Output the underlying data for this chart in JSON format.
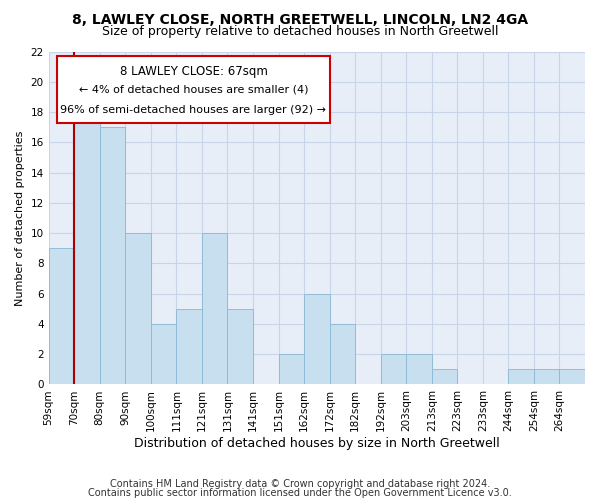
{
  "title": "8, LAWLEY CLOSE, NORTH GREETWELL, LINCOLN, LN2 4GA",
  "subtitle": "Size of property relative to detached houses in North Greetwell",
  "xlabel": "Distribution of detached houses by size in North Greetwell",
  "ylabel": "Number of detached properties",
  "bin_labels": [
    "59sqm",
    "70sqm",
    "80sqm",
    "90sqm",
    "100sqm",
    "111sqm",
    "121sqm",
    "131sqm",
    "141sqm",
    "151sqm",
    "162sqm",
    "172sqm",
    "182sqm",
    "192sqm",
    "203sqm",
    "213sqm",
    "223sqm",
    "233sqm",
    "244sqm",
    "254sqm",
    "264sqm"
  ],
  "bar_values": [
    9,
    18,
    17,
    10,
    4,
    5,
    10,
    5,
    0,
    2,
    6,
    4,
    0,
    2,
    2,
    1,
    0,
    0,
    1,
    1,
    1
  ],
  "bar_color": "#c8dff0",
  "bar_edge_color": "#89b8d4",
  "highlight_line_color": "#aa0000",
  "annotation_title": "8 LAWLEY CLOSE: 67sqm",
  "annotation_line1": "← 4% of detached houses are smaller (4)",
  "annotation_line2": "96% of semi-detached houses are larger (92) →",
  "annotation_box_color": "#ffffff",
  "annotation_box_edge": "#cc0000",
  "ylim": [
    0,
    22
  ],
  "yticks": [
    0,
    2,
    4,
    6,
    8,
    10,
    12,
    14,
    16,
    18,
    20,
    22
  ],
  "footer_line1": "Contains HM Land Registry data © Crown copyright and database right 2024.",
  "footer_line2": "Contains public sector information licensed under the Open Government Licence v3.0.",
  "bg_color": "#ffffff",
  "plot_bg_color": "#e8eef8",
  "grid_color": "#c8d4e8",
  "title_fontsize": 10,
  "subtitle_fontsize": 9,
  "xlabel_fontsize": 9,
  "ylabel_fontsize": 8,
  "tick_fontsize": 7.5,
  "footer_fontsize": 7
}
